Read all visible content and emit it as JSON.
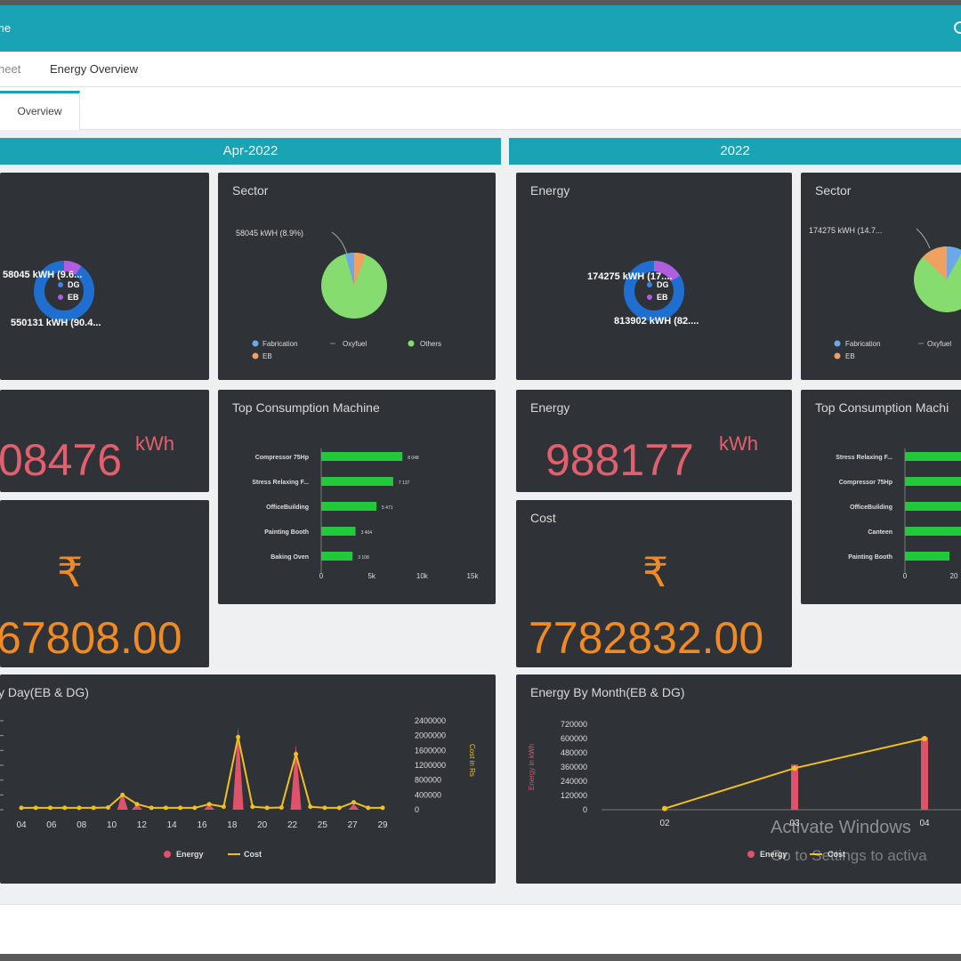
{
  "app": {
    "title": "me"
  },
  "nav": {
    "items": [
      "heet",
      "Energy Overview"
    ]
  },
  "tabs": [
    {
      "label": "Overview"
    }
  ],
  "columns": {
    "left": {
      "header": "Apr-2022"
    },
    "right": {
      "header": "2022"
    }
  },
  "left": {
    "donut": {
      "labels": [
        "58045 kWH (9.6...",
        "550131 kWH (90.4..."
      ],
      "legend": [
        "DG",
        "EB"
      ]
    },
    "sector": {
      "title": "Sector",
      "callout": "58045 kWH (8.9%)",
      "legend": [
        "Fabrication",
        "Oxyfuel",
        "Others",
        "EB"
      ]
    },
    "energy": {
      "value": "08476",
      "unit": "kWh"
    },
    "cost": {
      "symbol": "₹",
      "value": "67808.00"
    },
    "machines": {
      "title": "Top Consumption Machine",
      "items": [
        {
          "name": "Compressor 75Hp",
          "value": 8048,
          "label": "8 048"
        },
        {
          "name": "Stress Relaxing F...",
          "value": 7137,
          "label": "7 137"
        },
        {
          "name": "OfficeBuilding",
          "value": 5471,
          "label": "5 471"
        },
        {
          "name": "Painting Booth",
          "value": 3404,
          "label": "3 404"
        },
        {
          "name": "Baking Oven",
          "value": 3108,
          "label": "3 108"
        }
      ],
      "xticks": [
        "0",
        "5k",
        "10k",
        "15k"
      ],
      "xmax": 15000
    },
    "daily": {
      "title": "y Day(EB & DG)",
      "x": [
        "04",
        "06",
        "08",
        "10",
        "12",
        "14",
        "16",
        "18",
        "20",
        "22",
        "25",
        "27",
        "29"
      ],
      "yright": [
        "2400000",
        "2000000",
        "1600000",
        "1200000",
        "800000",
        "400000",
        "0"
      ],
      "yright_label": "Cost in Rs",
      "legend": [
        "Energy",
        "Cost"
      ]
    }
  },
  "right": {
    "donut": {
      "title": "Energy",
      "labels": [
        "174275 kWH (17....",
        "813902 kWH (82...."
      ],
      "legend": [
        "DG",
        "EB"
      ]
    },
    "sector": {
      "title": "Sector",
      "callout": "174275 kWH (14.7...",
      "legend": [
        "Fabrication",
        "Oxyfuel",
        "EB"
      ]
    },
    "energy": {
      "title": "Energy",
      "value": "988177",
      "unit": "kWh"
    },
    "cost": {
      "title": "Cost",
      "symbol": "₹",
      "value": "7782832.00"
    },
    "machines": {
      "title": "Top Consumption Machi",
      "items": [
        {
          "name": "Stress Relaxing F..."
        },
        {
          "name": "Compressor 75Hp"
        },
        {
          "name": "OfficeBuilding"
        },
        {
          "name": "Canteen"
        },
        {
          "name": "Painting Booth"
        }
      ],
      "xticks": [
        "0",
        "20"
      ]
    },
    "monthly": {
      "title": "Energy By Month(EB & DG)",
      "yleft": [
        "720000",
        "600000",
        "480000",
        "360000",
        "240000",
        "120000",
        "0"
      ],
      "yleft_label": "Energy in kWh",
      "x": [
        "02",
        "03",
        "04"
      ],
      "legend": [
        "Energy",
        "Cost"
      ]
    }
  },
  "watermark": {
    "line1": "Activate Windows",
    "line2": "Go to Settings to activa"
  },
  "chart_data": [
    {
      "type": "pie",
      "title": "",
      "categories": [
        "DG",
        "EB"
      ],
      "values": [
        58045,
        550131
      ]
    },
    {
      "type": "pie",
      "title": "Sector",
      "categories": [
        "Fabrication",
        "EB",
        "Others"
      ],
      "values": [
        2,
        6,
        92
      ]
    },
    {
      "type": "bar",
      "title": "Top Consumption Machine",
      "categories": [
        "Compressor 75Hp",
        "Stress Relaxing F...",
        "OfficeBuilding",
        "Painting Booth",
        "Baking Oven"
      ],
      "values": [
        8048,
        7137,
        5471,
        3404,
        3108
      ],
      "xlim": [
        0,
        15000
      ]
    },
    {
      "type": "line",
      "title": "y Day(EB & DG)",
      "x": [
        "04",
        "05",
        "06",
        "07",
        "08",
        "09",
        "10",
        "11",
        "12",
        "13",
        "14",
        "15",
        "16",
        "17",
        "18",
        "19",
        "20",
        "21",
        "22",
        "23",
        "24",
        "25",
        "26",
        "27",
        "28",
        "29"
      ],
      "series": [
        {
          "name": "Energy",
          "values": [
            0,
            0,
            0,
            0,
            0,
            0,
            0,
            3,
            1,
            0,
            0,
            0,
            0,
            1,
            0,
            14,
            0,
            0,
            0,
            11,
            0,
            0,
            0,
            1,
            0,
            0
          ]
        },
        {
          "name": "Cost",
          "values": [
            50000,
            50000,
            50000,
            50000,
            50000,
            50000,
            60000,
            400000,
            150000,
            50000,
            50000,
            50000,
            50000,
            150000,
            80000,
            1960000,
            80000,
            50000,
            60000,
            1500000,
            80000,
            50000,
            50000,
            200000,
            50000,
            50000
          ]
        }
      ],
      "ylim_right": [
        0,
        2400000
      ]
    },
    {
      "type": "pie",
      "title": "Energy",
      "categories": [
        "DG",
        "EB"
      ],
      "values": [
        174275,
        813902
      ]
    },
    {
      "type": "bar",
      "title": "Energy By Month(EB & DG)",
      "categories": [
        "02",
        "03",
        "04"
      ],
      "series": [
        {
          "name": "Energy",
          "values": [
            0,
            380000,
            610000
          ]
        },
        {
          "name": "Cost",
          "values": [
            10000,
            350000,
            600000
          ]
        }
      ],
      "ylim": [
        0,
        720000
      ]
    }
  ]
}
